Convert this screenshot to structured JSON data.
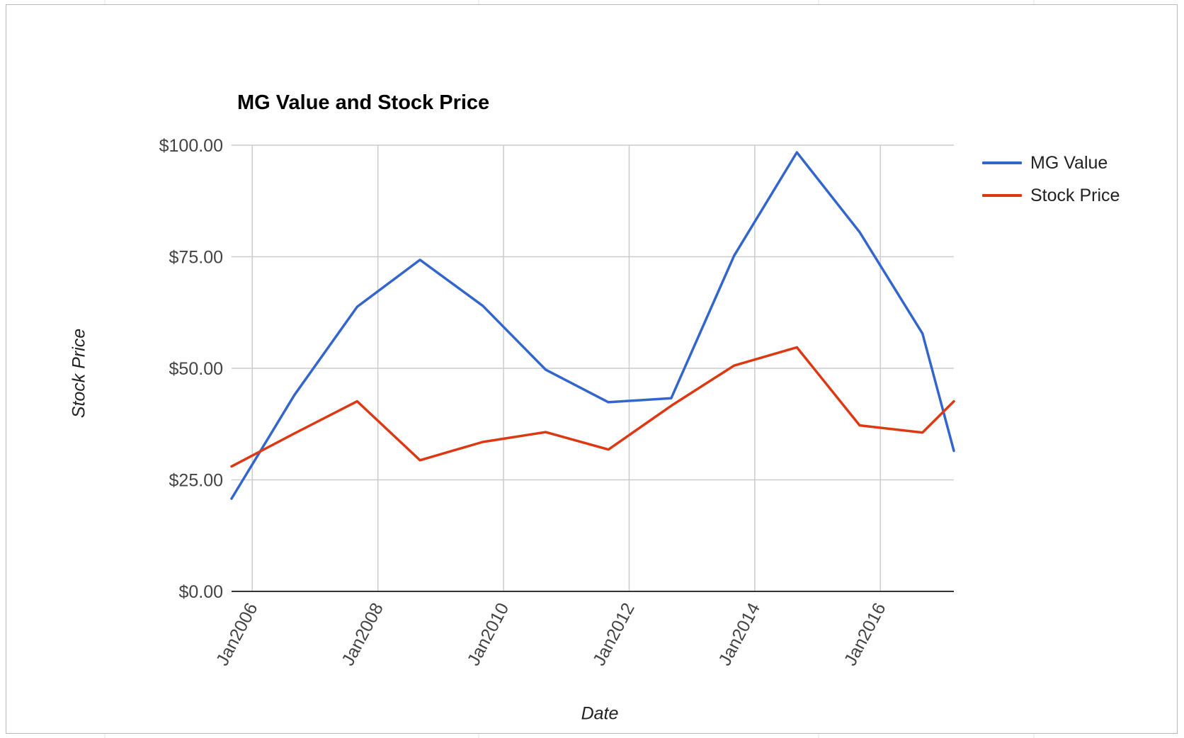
{
  "chart_data": {
    "type": "line",
    "title": "MG Value and Stock Price",
    "xlabel": "Date",
    "ylabel": "Stock Price",
    "ylim": [
      0,
      100
    ],
    "y_ticks": [
      "$0.00",
      "$25.00",
      "$50.00",
      "$75.00",
      "$100.00"
    ],
    "y_tick_values": [
      0,
      25,
      50,
      75,
      100
    ],
    "x_ticks": [
      "Jan2006",
      "Jan2008",
      "Jan2010",
      "Jan2012",
      "Jan2014",
      "Jan2016"
    ],
    "x_tick_values": [
      2006.0,
      2008.0,
      2010.0,
      2012.0,
      2014.0,
      2016.0
    ],
    "x_range": [
      2005.67,
      2017.17
    ],
    "grid": true,
    "legend_position": "right",
    "x": [
      2005.67,
      2006.67,
      2007.67,
      2008.67,
      2009.67,
      2010.67,
      2011.67,
      2012.67,
      2013.67,
      2014.67,
      2015.67,
      2016.67,
      2017.17
    ],
    "series": [
      {
        "name": "MG Value",
        "color": "#3366cc",
        "values": [
          20.8,
          44.0,
          63.8,
          74.3,
          64.0,
          49.7,
          42.4,
          43.3,
          75.2,
          98.4,
          80.5,
          57.8,
          31.5
        ]
      },
      {
        "name": "Stock Price",
        "color": "#dc3912",
        "values": [
          28.0,
          35.4,
          42.6,
          29.4,
          33.5,
          35.7,
          31.8,
          41.6,
          50.6,
          54.7,
          37.2,
          35.6,
          42.6
        ]
      }
    ]
  }
}
